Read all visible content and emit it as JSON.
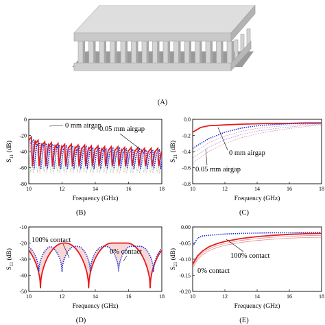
{
  "captions": {
    "a": "(A)",
    "b": "(B)",
    "c": "(C)",
    "d": "(D)",
    "e": "(E)"
  },
  "colors": {
    "red": "#e41a1c",
    "blue": "#1f2fd6",
    "faint_red": "#e88a8a",
    "faint_green": "#6fbf6f",
    "faint_blue": "#8a8ee6",
    "fill": "#f4c6c6"
  },
  "chart_data": [
    {
      "id": "B",
      "type": "line",
      "xlabel": "Frequency (GHz)",
      "ylabel": "S",
      "ylabel_sub": "11",
      "ylabel_unit": " (dB)",
      "xlim": [
        10,
        18
      ],
      "ylim": [
        -80,
        0
      ],
      "xticks": [
        10,
        12,
        14,
        16,
        18
      ],
      "xtick_labels": [
        "10",
        "12",
        "14",
        "16",
        "18"
      ],
      "yticks": [
        -80,
        -60,
        -40,
        -20,
        0
      ],
      "ytick_labels": [
        "-80",
        "-60",
        "-40",
        "-20",
        "0"
      ],
      "annotations": [
        "0 mm airgap",
        "0.05 mm airgap"
      ],
      "series": [
        {
          "style": "red-solid",
          "x": [
            10.2,
            10.6,
            11.0,
            11.4,
            11.8,
            12.2,
            12.6,
            13.0,
            13.4,
            13.8,
            14.2,
            14.6,
            15.0,
            15.4,
            15.8,
            16.2,
            16.6,
            17.0,
            17.4,
            17.8
          ],
          "y": [
            -22,
            -26,
            -28,
            -29,
            -30,
            -31,
            -31,
            -32,
            -32,
            -33,
            -33,
            -34,
            -34,
            -34,
            -35,
            -35,
            -35,
            -36,
            -36,
            -36
          ],
          "min_y": -58
        },
        {
          "style": "blue-dotted",
          "x": [
            10.3,
            10.7,
            11.1,
            11.5,
            11.9,
            12.3,
            12.7,
            13.1,
            13.5,
            13.9,
            14.3,
            14.7,
            15.1,
            15.5,
            15.9,
            16.3,
            16.7,
            17.1,
            17.5,
            17.9
          ],
          "y": [
            -26,
            -29,
            -30,
            -31,
            -32,
            -33,
            -33,
            -34,
            -34,
            -35,
            -35,
            -36,
            -36,
            -36,
            -37,
            -37,
            -37,
            -38,
            -38,
            -38
          ],
          "min_y": -62
        }
      ]
    },
    {
      "id": "C",
      "type": "line",
      "xlabel": "Frequency (GHz)",
      "ylabel": "S",
      "ylabel_sub": "21",
      "ylabel_unit": " (dB)",
      "xlim": [
        10,
        18
      ],
      "ylim": [
        -0.8,
        0
      ],
      "xticks": [
        10,
        12,
        14,
        16,
        18
      ],
      "xtick_labels": [
        "10",
        "12",
        "14",
        "16",
        "18"
      ],
      "yticks": [
        -0.8,
        -0.6,
        -0.4,
        -0.2,
        0
      ],
      "ytick_labels": [
        "-0.8",
        "-0.6",
        "-0.4",
        "-0.2",
        "0.0"
      ],
      "annotations": [
        "0 mm airgap",
        "0.05 mm airgap"
      ],
      "series": [
        {
          "style": "red-solid",
          "x": [
            10,
            10.5,
            11,
            12,
            13,
            14,
            15,
            16,
            17,
            18
          ],
          "y": [
            -0.16,
            -0.1,
            -0.08,
            -0.07,
            -0.06,
            -0.055,
            -0.05,
            -0.05,
            -0.045,
            -0.045
          ]
        },
        {
          "style": "blue-dotted",
          "x": [
            10,
            10.5,
            11,
            12,
            13,
            14,
            15,
            16,
            17,
            18
          ],
          "y": [
            -0.36,
            -0.3,
            -0.24,
            -0.16,
            -0.11,
            -0.08,
            -0.065,
            -0.055,
            -0.05,
            -0.048
          ]
        }
      ]
    },
    {
      "id": "D",
      "type": "line",
      "xlabel": "Frequency (GHz)",
      "ylabel": "S",
      "ylabel_sub": "11",
      "ylabel_unit": " (dB)",
      "xlim": [
        10,
        18
      ],
      "ylim": [
        -50,
        -10
      ],
      "xticks": [
        10,
        12,
        14,
        16,
        18
      ],
      "xtick_labels": [
        "10",
        "12",
        "14",
        "16",
        "18"
      ],
      "yticks": [
        -50,
        -40,
        -30,
        -20,
        -10
      ],
      "ytick_labels": [
        "-50",
        "-40",
        "-30",
        "-20",
        "-10"
      ],
      "annotations": [
        "100% contact",
        "0% contact"
      ],
      "series": [
        {
          "style": "red-solid",
          "nulls": [
            10.7,
            13.6,
            17.3
          ],
          "peak_db": -20,
          "null_db": -48
        },
        {
          "style": "blue-dotted",
          "nulls": [
            10.6,
            12.0,
            13.7,
            15.4,
            17.5
          ],
          "peak_db": -22,
          "null_db": -38
        }
      ]
    },
    {
      "id": "E",
      "type": "line",
      "xlabel": "Frequency (GHz)",
      "ylabel": "S",
      "ylabel_sub": "21",
      "ylabel_unit": " (dB)",
      "xlim": [
        10,
        18
      ],
      "ylim": [
        -0.2,
        0
      ],
      "xticks": [
        10,
        12,
        14,
        16,
        18
      ],
      "xtick_labels": [
        "10",
        "12",
        "14",
        "16",
        "18"
      ],
      "yticks": [
        -0.2,
        -0.15,
        -0.1,
        -0.05,
        0
      ],
      "ytick_labels": [
        "-0.20",
        "-0.15",
        "-0.10",
        "-0.05",
        "0.00"
      ],
      "annotations": [
        "100% contact",
        "0% contact"
      ],
      "series": [
        {
          "style": "red-solid",
          "x": [
            10,
            10.3,
            10.6,
            11,
            11.5,
            12,
            13,
            14,
            15,
            16,
            17,
            18
          ],
          "y": [
            -0.115,
            -0.09,
            -0.075,
            -0.062,
            -0.052,
            -0.045,
            -0.036,
            -0.03,
            -0.026,
            -0.023,
            -0.021,
            -0.02
          ]
        },
        {
          "style": "blue-dotted",
          "x": [
            10,
            10.3,
            10.6,
            11,
            11.5,
            12,
            13,
            14,
            15,
            16,
            17,
            18
          ],
          "y": [
            -0.06,
            -0.035,
            -0.028,
            -0.026,
            -0.024,
            -0.022,
            -0.02,
            -0.019,
            -0.018,
            -0.018,
            -0.017,
            -0.017
          ]
        }
      ]
    }
  ]
}
